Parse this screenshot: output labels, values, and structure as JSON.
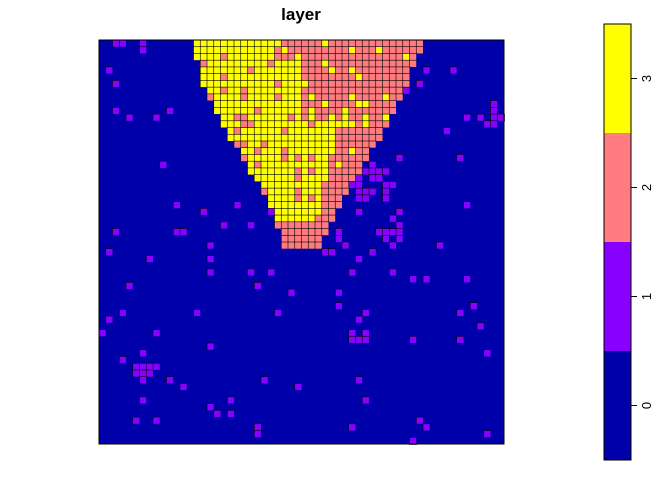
{
  "chart_data": {
    "type": "heatmap",
    "title": "layer",
    "xlabel": "",
    "ylabel": "",
    "grid": false,
    "legend_position": "right",
    "color_classes": [
      {
        "value": 0,
        "label": "0",
        "color": "#0000AA"
      },
      {
        "value": 1,
        "label": "1",
        "color": "#8800FF"
      },
      {
        "value": 2,
        "label": "2",
        "color": "#FF7B80"
      },
      {
        "value": 3,
        "label": "3",
        "color": "#FFFF00"
      }
    ],
    "grid_size": [
      60,
      60
    ],
    "cells_class_2_3_rows": [
      {
        "row": 0,
        "col_range": [
          14,
          47
        ]
      },
      {
        "row": 5,
        "col_range": [
          15,
          45
        ]
      },
      {
        "row": 10,
        "col_range": [
          17,
          43
        ]
      },
      {
        "row": 15,
        "col_range": [
          20,
          40
        ]
      },
      {
        "row": 20,
        "col_range": [
          23,
          37
        ]
      },
      {
        "row": 25,
        "col_range": [
          26,
          34
        ]
      },
      {
        "row": 30,
        "col_range": [
          27,
          32
        ]
      }
    ]
  }
}
